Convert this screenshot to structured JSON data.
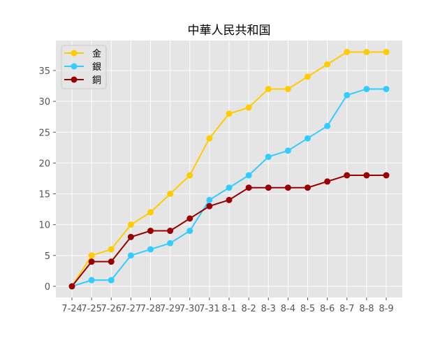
{
  "chart_data": {
    "type": "line",
    "title": "中華人民共和国",
    "xlabel": "",
    "ylabel": "",
    "categories": [
      "7-24",
      "7-25",
      "7-26",
      "7-27",
      "7-28",
      "7-29",
      "7-30",
      "7-31",
      "8-1",
      "8-2",
      "8-3",
      "8-4",
      "8-5",
      "8-6",
      "8-7",
      "8-8",
      "8-9"
    ],
    "series": [
      {
        "name": "金",
        "color": "#FFCC00",
        "values": [
          0,
          5,
          6,
          10,
          12,
          15,
          18,
          24,
          28,
          29,
          32,
          32,
          34,
          36,
          38,
          38,
          38
        ]
      },
      {
        "name": "銀",
        "color": "#33CCFF",
        "values": [
          0,
          1,
          1,
          5,
          6,
          7,
          9,
          14,
          16,
          18,
          21,
          22,
          24,
          26,
          31,
          32,
          32
        ]
      },
      {
        "name": "銅",
        "color": "#990000",
        "values": [
          0,
          4,
          4,
          8,
          9,
          9,
          11,
          13,
          14,
          16,
          16,
          16,
          16,
          17,
          18,
          18,
          18
        ]
      }
    ],
    "yticks": [
      0,
      5,
      10,
      15,
      20,
      25,
      30,
      35
    ],
    "ylim": [
      -1.9,
      39.9
    ],
    "grid": true,
    "legend_position": "upper left",
    "style": {
      "background": "#E5E5E5",
      "grid_color": "#FFFFFF",
      "tick_label_color": "#555555"
    }
  }
}
